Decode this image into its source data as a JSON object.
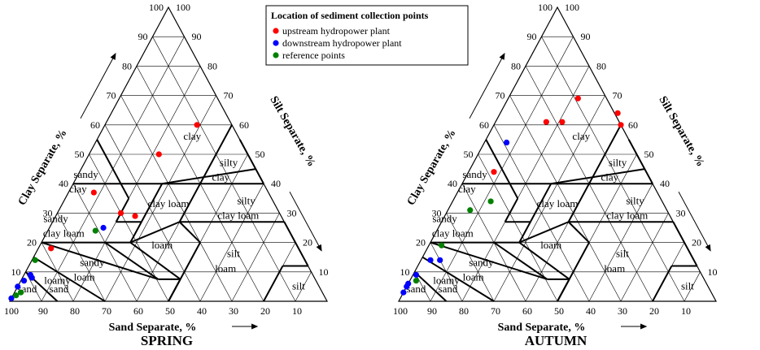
{
  "legend": {
    "title": "Location of sediment collection points",
    "entries": [
      {
        "key": "upstream",
        "label": "upstream hydropower plant",
        "color": "#ff0000"
      },
      {
        "key": "downstream",
        "label": "downstream hydropower plant",
        "color": "#0000ff"
      },
      {
        "key": "reference",
        "label": "reference points",
        "color": "#008000"
      }
    ]
  },
  "chart_data": [
    {
      "type": "scatter",
      "subtype": "ternary soil texture triangle",
      "title": "SPRING",
      "title_color": "#00b050",
      "axes": {
        "clay": {
          "label": "Clay Separate, %",
          "ticks": [
            10,
            20,
            30,
            40,
            50,
            60,
            70,
            80,
            90,
            100
          ],
          "range": [
            0,
            100
          ]
        },
        "silt": {
          "label": "Silt Separate, %",
          "ticks": [
            10,
            20,
            30,
            40,
            50,
            60,
            70,
            80,
            90,
            100
          ],
          "range": [
            0,
            100
          ]
        },
        "sand": {
          "label": "Sand Separate, %",
          "ticks": [
            10,
            20,
            30,
            40,
            50,
            60,
            70,
            80,
            90,
            100
          ],
          "range": [
            0,
            100
          ]
        }
      },
      "texture_classes": [
        "clay",
        "sandy clay",
        "silty clay",
        "clay loam",
        "silty clay loam",
        "sandy clay loam",
        "loam",
        "silt loam",
        "sandy loam",
        "loamy sand",
        "sand",
        "silt"
      ],
      "series": [
        {
          "name": "upstream hydropower plant",
          "points": [
            {
              "clay": 60,
              "silt": 29,
              "sand": 11
            },
            {
              "clay": 50,
              "silt": 22,
              "sand": 28
            },
            {
              "clay": 37,
              "silt": 8,
              "sand": 55
            },
            {
              "clay": 30,
              "silt": 20,
              "sand": 50
            },
            {
              "clay": 29,
              "silt": 25,
              "sand": 46
            },
            {
              "clay": 18,
              "silt": 4,
              "sand": 78
            }
          ]
        },
        {
          "name": "downstream hydropower plant",
          "points": [
            {
              "clay": 25,
              "silt": 17,
              "sand": 58
            },
            {
              "clay": 9,
              "silt": 2,
              "sand": 89
            },
            {
              "clay": 8,
              "silt": 3,
              "sand": 89
            },
            {
              "clay": 7,
              "silt": 1,
              "sand": 92
            },
            {
              "clay": 5,
              "silt": 0,
              "sand": 95
            },
            {
              "clay": 1,
              "silt": 0,
              "sand": 99
            }
          ]
        },
        {
          "name": "reference points",
          "points": [
            {
              "clay": 24,
              "silt": 15,
              "sand": 61
            },
            {
              "clay": 14,
              "silt": 1,
              "sand": 85
            },
            {
              "clay": 3,
              "silt": 2,
              "sand": 95
            },
            {
              "clay": 2,
              "silt": 1,
              "sand": 97
            }
          ]
        }
      ]
    },
    {
      "type": "scatter",
      "subtype": "ternary soil texture triangle",
      "title": "AUTUMN",
      "title_color": "#ff8c1a",
      "axes": {
        "clay": {
          "label": "Clay Separate, %",
          "ticks": [
            10,
            20,
            30,
            40,
            50,
            60,
            70,
            80,
            90,
            100
          ],
          "range": [
            0,
            100
          ]
        },
        "silt": {
          "label": "Silt Separate, %",
          "ticks": [
            10,
            20,
            30,
            40,
            50,
            60,
            70,
            80,
            90,
            100
          ],
          "range": [
            0,
            100
          ]
        },
        "sand": {
          "label": "Sand Separate, %",
          "ticks": [
            10,
            20,
            30,
            40,
            50,
            60,
            70,
            80,
            90,
            100
          ],
          "range": [
            0,
            100
          ]
        }
      },
      "texture_classes": [
        "clay",
        "sandy clay",
        "silty clay",
        "clay loam",
        "silty clay loam",
        "sandy clay loam",
        "loam",
        "silt loam",
        "sandy loam",
        "loamy sand",
        "sand",
        "silt"
      ],
      "series": [
        {
          "name": "upstream hydropower plant",
          "points": [
            {
              "clay": 69,
              "silt": 22,
              "sand": 9
            },
            {
              "clay": 64,
              "silt": 37,
              "sand": 0
            },
            {
              "clay": 61,
              "silt": 16,
              "sand": 23
            },
            {
              "clay": 61,
              "silt": 21,
              "sand": 18
            },
            {
              "clay": 60,
              "silt": 40,
              "sand": 0
            },
            {
              "clay": 44,
              "silt": 8,
              "sand": 48
            }
          ]
        },
        {
          "name": "downstream hydropower plant",
          "points": [
            {
              "clay": 54,
              "silt": 7,
              "sand": 39
            },
            {
              "clay": 14,
              "silt": 6,
              "sand": 80
            },
            {
              "clay": 14,
              "silt": 3,
              "sand": 83
            },
            {
              "clay": 9,
              "silt": 1,
              "sand": 90
            },
            {
              "clay": 6,
              "silt": 0,
              "sand": 94
            },
            {
              "clay": 5,
              "silt": 0,
              "sand": 95
            },
            {
              "clay": 3,
              "silt": 0,
              "sand": 97
            }
          ]
        },
        {
          "name": "reference points",
          "points": [
            {
              "clay": 34,
              "silt": 12,
              "sand": 54
            },
            {
              "clay": 31,
              "silt": 7,
              "sand": 62
            },
            {
              "clay": 19,
              "silt": 4,
              "sand": 77
            },
            {
              "clay": 7,
              "silt": 2,
              "sand": 91
            }
          ]
        }
      ]
    }
  ]
}
